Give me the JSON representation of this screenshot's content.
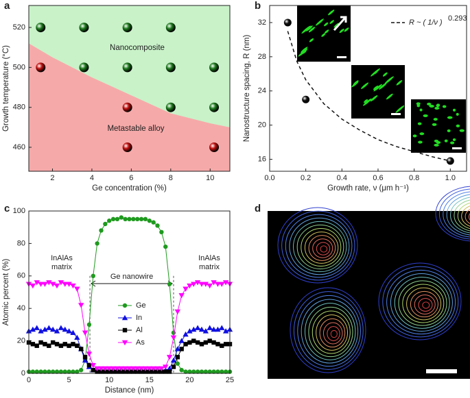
{
  "chart_data": [
    {
      "panel": "a",
      "type": "scatter",
      "xlabel": "Ge concentration (%)",
      "ylabel": "Growth temperature (°C)",
      "xlim": [
        0.8,
        11
      ],
      "ylim": [
        448,
        531
      ],
      "xticks": [
        2,
        4,
        6,
        8,
        10
      ],
      "yticks": [
        460,
        480,
        500,
        520
      ],
      "region_colors": [
        "#c9f2c9",
        "#f6a9a9"
      ],
      "annotations": [
        "Nanocomposite",
        "Metastable alloy"
      ],
      "boundary": {
        "x": [
          0.8,
          2,
          4,
          6,
          8,
          10,
          11
        ],
        "y": [
          512,
          505,
          495,
          486,
          477,
          472,
          470
        ]
      },
      "series": [
        {
          "color": "#1e7a1e",
          "x": [
            1.4,
            3.6,
            5.8,
            8,
            3.6,
            5.8,
            8,
            10.2,
            8,
            10.2
          ],
          "y": [
            520,
            520,
            520,
            520,
            500,
            500,
            500,
            500,
            480,
            480
          ]
        },
        {
          "color": "#c01010",
          "x": [
            1.4,
            5.8,
            5.8,
            10.2
          ],
          "y": [
            500,
            480,
            460,
            460
          ]
        }
      ]
    },
    {
      "panel": "b",
      "type": "scatter",
      "xlabel": "Growth rate, ν (μm h⁻¹)",
      "ylabel": "Nanostructure spacing, R (nm)",
      "xlim": [
        0,
        1.09
      ],
      "ylim": [
        14.6,
        34
      ],
      "xticks": [
        {
          "value": 0,
          "label": "0.0"
        },
        0.2,
        0.4,
        0.6,
        0.8,
        {
          "value": 1,
          "label": "1.0"
        }
      ],
      "yticks": [
        16,
        20,
        24,
        28,
        32
      ],
      "series": [
        {
          "color": "#111111",
          "x": [
            0.1,
            0.2,
            1.0
          ],
          "y": [
            32,
            23,
            15.8
          ]
        }
      ],
      "fit": {
        "label": "R ~ ( 1/ν )",
        "label_exponent": "0.293",
        "x": [
          0.1,
          0.15,
          0.2,
          0.3,
          0.4,
          0.5,
          0.6,
          0.7,
          0.8,
          0.9,
          1.0
        ],
        "y": [
          31.0,
          27.5,
          25.3,
          22.5,
          20.7,
          19.4,
          18.3,
          17.5,
          16.9,
          16.3,
          15.8
        ]
      }
    },
    {
      "panel": "c",
      "type": "line",
      "xlabel": "Distance (nm)",
      "ylabel": "Atomic percent (%)",
      "xlim": [
        0,
        25
      ],
      "ylim": [
        0,
        100
      ],
      "xticks": [
        0,
        5,
        10,
        15,
        20,
        25
      ],
      "yticks": [
        0,
        20,
        40,
        60,
        80,
        100
      ],
      "annotations": [
        [
          "InAlAs",
          "matrix"
        ],
        [
          "InAlAs",
          "matrix"
        ],
        [
          "Ge nanowire"
        ]
      ],
      "x": [
        0,
        0.5,
        1,
        1.5,
        2,
        2.5,
        3,
        3.5,
        4,
        4.5,
        5,
        5.5,
        6,
        6.5,
        7,
        7.5,
        8,
        8.5,
        9,
        9.5,
        10,
        10.5,
        11,
        11.5,
        12,
        12.5,
        13,
        13.5,
        14,
        14.5,
        15,
        15.5,
        16,
        16.5,
        17,
        17.5,
        18,
        18.5,
        19,
        19.5,
        20,
        20.5,
        21,
        21.5,
        22,
        22.5,
        23,
        23.5,
        24,
        24.5,
        25
      ],
      "series": [
        {
          "name": "Ge",
          "color": "#1f9a1f",
          "marker": "circle",
          "values": [
            1,
            1,
            1,
            1,
            1,
            1,
            1,
            1,
            1,
            1,
            1,
            1,
            1,
            2,
            8,
            30,
            60,
            80,
            88,
            92,
            94,
            95,
            95,
            96,
            95,
            95,
            95,
            95,
            95,
            95,
            94,
            93,
            91,
            87,
            78,
            55,
            25,
            6,
            2,
            1,
            1,
            1,
            1,
            1,
            1,
            1,
            1,
            1,
            1,
            1,
            1
          ]
        },
        {
          "name": "In",
          "color": "#1010e0",
          "marker": "triangle-up",
          "values": [
            26,
            27,
            28,
            26,
            27,
            28,
            27,
            26,
            28,
            27,
            26,
            25,
            22,
            15,
            8,
            4,
            2,
            2,
            2,
            2,
            2,
            2,
            2,
            2,
            2,
            2,
            2,
            2,
            2,
            2,
            2,
            2,
            2,
            2,
            2,
            3,
            8,
            15,
            20,
            24,
            26,
            27,
            28,
            27,
            26,
            28,
            27,
            27,
            28,
            26,
            27
          ]
        },
        {
          "name": "Al",
          "color": "#000000",
          "marker": "square",
          "values": [
            19,
            18,
            17,
            19,
            18,
            17,
            19,
            18,
            17,
            18,
            17,
            18,
            17,
            15,
            10,
            5,
            2,
            1,
            1,
            1,
            1,
            1,
            1,
            1,
            1,
            1,
            1,
            1,
            1,
            1,
            1,
            1,
            1,
            1,
            1,
            1,
            4,
            10,
            15,
            18,
            19,
            20,
            19,
            18,
            19,
            20,
            19,
            18,
            17,
            18,
            18
          ]
        },
        {
          "name": "As",
          "color": "#ff00ff",
          "marker": "triangle-down",
          "values": [
            55,
            54,
            56,
            55,
            55,
            56,
            55,
            54,
            56,
            55,
            55,
            54,
            52,
            42,
            25,
            12,
            5,
            3,
            3,
            3,
            3,
            3,
            3,
            3,
            3,
            3,
            3,
            3,
            3,
            3,
            3,
            3,
            3,
            3,
            4,
            10,
            22,
            38,
            48,
            52,
            54,
            55,
            56,
            55,
            55,
            54,
            56,
            55,
            55,
            56,
            55
          ]
        }
      ]
    }
  ],
  "image_panel": {
    "panel": "d"
  }
}
